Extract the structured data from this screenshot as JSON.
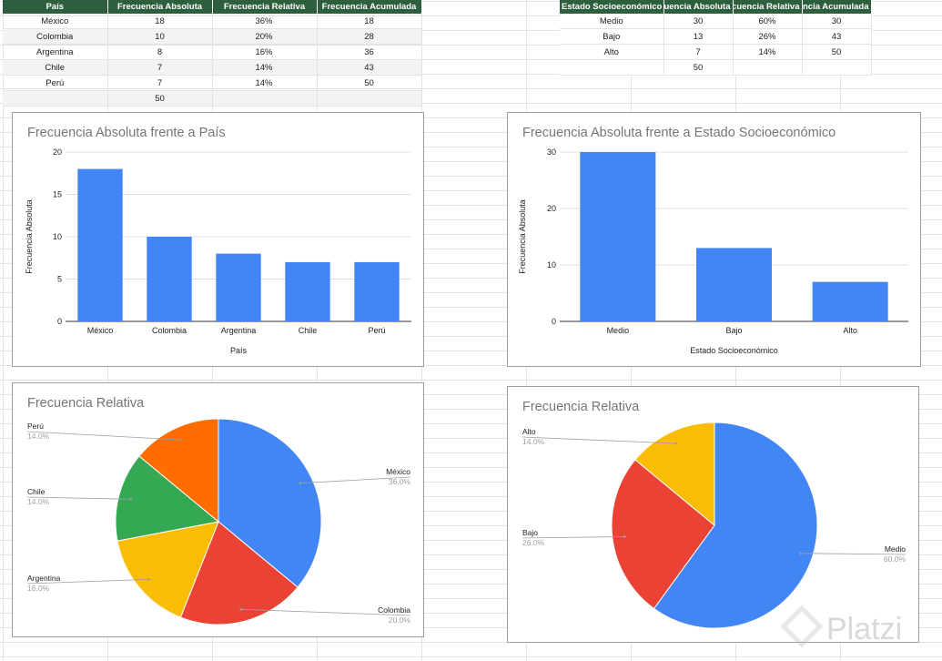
{
  "sheet": {
    "table_pais": {
      "headers": [
        "País",
        "Frecuencia Absoluta",
        "Frecuencia Relativa",
        "Frecuencia Acumulada"
      ],
      "rows": [
        [
          "México",
          "18",
          "36%",
          "18"
        ],
        [
          "Colombia",
          "10",
          "20%",
          "28"
        ],
        [
          "Argentina",
          "8",
          "16%",
          "36"
        ],
        [
          "Chile",
          "7",
          "14%",
          "43"
        ],
        [
          "Perú",
          "7",
          "14%",
          "50"
        ]
      ],
      "total": "50"
    },
    "table_estado": {
      "headers": [
        "Estado Socioeconómico",
        "Frecuencia Absoluta",
        "Frecuencia Relativa",
        "Frecuencia Acumulada"
      ],
      "rows": [
        [
          "Medio",
          "30",
          "60%",
          "30"
        ],
        [
          "Bajo",
          "13",
          "26%",
          "43"
        ],
        [
          "Alto",
          "7",
          "14%",
          "50"
        ]
      ],
      "total": "50"
    }
  },
  "watermark": "Platzi",
  "chart_data": [
    {
      "type": "bar",
      "title": "Frecuencia Absoluta frente a País",
      "xlabel": "País",
      "ylabel": "Frecuencia Absoluta",
      "categories": [
        "México",
        "Colombia",
        "Argentina",
        "Chile",
        "Perú"
      ],
      "values": [
        18,
        10,
        8,
        7,
        7
      ],
      "ylim": [
        0,
        20
      ],
      "yticks": [
        0,
        5,
        10,
        15,
        20
      ],
      "grid": true,
      "color": "#4285f4"
    },
    {
      "type": "bar",
      "title": "Frecuencia Absoluta frente a Estado Socioeconómico",
      "xlabel": "Estado Socioeconómico",
      "ylabel": "Frecuencia Absoluta",
      "categories": [
        "Medio",
        "Bajo",
        "Alto"
      ],
      "values": [
        30,
        13,
        7
      ],
      "ylim": [
        0,
        30
      ],
      "yticks": [
        0,
        10,
        20,
        30
      ],
      "grid": true,
      "color": "#4285f4"
    },
    {
      "type": "pie",
      "title": "Frecuencia Relativa",
      "labels": [
        "México",
        "Colombia",
        "Argentina",
        "Chile",
        "Perú"
      ],
      "values": [
        36.0,
        20.0,
        16.0,
        14.0,
        14.0
      ],
      "value_labels": [
        "36.0%",
        "20.0%",
        "16.0%",
        "14.0%",
        "14.0%"
      ],
      "colors": [
        "#4285f4",
        "#ea4335",
        "#fbbc04",
        "#34a853",
        "#ff6d01"
      ]
    },
    {
      "type": "pie",
      "title": "Frecuencia Relativa",
      "labels": [
        "Medio",
        "Bajo",
        "Alto"
      ],
      "values": [
        60.0,
        26.0,
        14.0
      ],
      "value_labels": [
        "60.0%",
        "26.0%",
        "14.0%"
      ],
      "colors": [
        "#4285f4",
        "#ea4335",
        "#fbbc04"
      ]
    }
  ]
}
